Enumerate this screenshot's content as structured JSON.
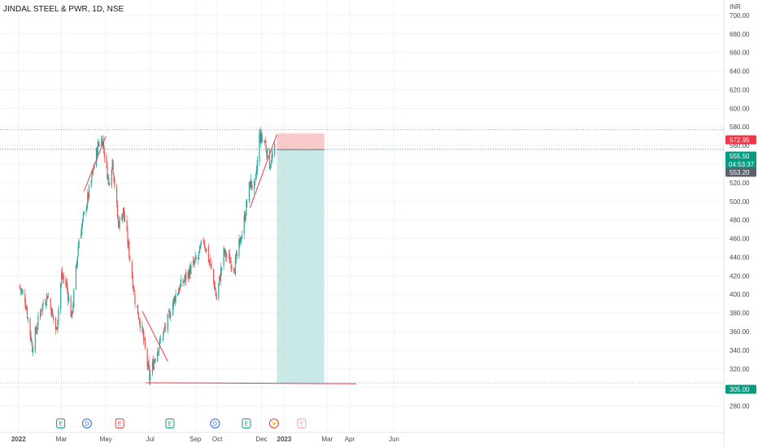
{
  "header": {
    "title": "JINDAL STEEL & PWR, 1D, NSE"
  },
  "currency": "INR",
  "colors": {
    "up": "#26a69a",
    "down": "#ef5350",
    "trend": "#f23645",
    "grid": "#f0f3fa",
    "stop": "#f7b2b2",
    "target": "#b2dfdb",
    "entry": "#089981",
    "dark_tag": "#5d606b"
  },
  "chart_data": {
    "type": "candlestick",
    "title": "JINDAL STEEL & PWR, 1D, NSE",
    "ylim": [
      270,
      712
    ],
    "y_ticks": [
      "700.00",
      "680.00",
      "660.00",
      "640.00",
      "620.00",
      "600.00",
      "580.00",
      "560.00",
      "540.00",
      "520.00",
      "500.00",
      "480.00",
      "460.00",
      "440.00",
      "420.00",
      "400.00",
      "380.00",
      "360.00",
      "340.00",
      "320.00",
      "300.00",
      "280.00"
    ],
    "x_ticks": [
      "2022",
      "Mar",
      "May",
      "Jul",
      "Sep",
      "Oct",
      "Dec",
      "2023",
      "Mar",
      "Apr",
      "Jun"
    ],
    "x_tick_bold": [
      "2022",
      "2023"
    ],
    "price_key_points": [
      {
        "date": "2022-01-01",
        "price": 410
      },
      {
        "date": "2022-01-10",
        "price": 395
      },
      {
        "date": "2022-01-20",
        "price": 343
      },
      {
        "date": "2022-02-01",
        "price": 385
      },
      {
        "date": "2022-02-10",
        "price": 400
      },
      {
        "date": "2022-02-22",
        "price": 360
      },
      {
        "date": "2022-03-01",
        "price": 420
      },
      {
        "date": "2022-03-08",
        "price": 410
      },
      {
        "date": "2022-03-15",
        "price": 375
      },
      {
        "date": "2022-03-25",
        "price": 460
      },
      {
        "date": "2022-04-08",
        "price": 510
      },
      {
        "date": "2022-04-20",
        "price": 560
      },
      {
        "date": "2022-04-26",
        "price": 568
      },
      {
        "date": "2022-05-05",
        "price": 520
      },
      {
        "date": "2022-05-10",
        "price": 545
      },
      {
        "date": "2022-05-18",
        "price": 475
      },
      {
        "date": "2022-05-25",
        "price": 490
      },
      {
        "date": "2022-06-02",
        "price": 445
      },
      {
        "date": "2022-06-10",
        "price": 395
      },
      {
        "date": "2022-06-20",
        "price": 360
      },
      {
        "date": "2022-06-30",
        "price": 310
      },
      {
        "date": "2022-07-08",
        "price": 335
      },
      {
        "date": "2022-07-20",
        "price": 360
      },
      {
        "date": "2022-08-05",
        "price": 400
      },
      {
        "date": "2022-08-20",
        "price": 420
      },
      {
        "date": "2022-09-05",
        "price": 440
      },
      {
        "date": "2022-09-12",
        "price": 460
      },
      {
        "date": "2022-09-25",
        "price": 420
      },
      {
        "date": "2022-09-30",
        "price": 395
      },
      {
        "date": "2022-10-10",
        "price": 445
      },
      {
        "date": "2022-10-25",
        "price": 430
      },
      {
        "date": "2022-11-05",
        "price": 470
      },
      {
        "date": "2022-11-15",
        "price": 520
      },
      {
        "date": "2022-11-22",
        "price": 515
      },
      {
        "date": "2022-11-28",
        "price": 570
      },
      {
        "date": "2022-12-05",
        "price": 565
      },
      {
        "date": "2022-12-12",
        "price": 540
      },
      {
        "date": "2022-12-19",
        "price": 555.5
      }
    ],
    "annotations": {
      "horizontal_lines": [
        {
          "price": 577,
          "style": "dotted"
        },
        {
          "price": 556,
          "style": "dotted"
        },
        {
          "price": 305,
          "style": "dotted"
        }
      ],
      "trendlines": [
        {
          "from": {
            "date": "2022-04-01",
            "price": 511
          },
          "to": {
            "date": "2022-05-01",
            "price": 570
          }
        },
        {
          "from": {
            "date": "2022-06-20",
            "price": 382
          },
          "to": {
            "date": "2022-07-25",
            "price": 328
          }
        },
        {
          "from": {
            "date": "2022-11-15",
            "price": 493
          },
          "to": {
            "date": "2022-12-22",
            "price": 572
          }
        },
        {
          "from": {
            "date": "2022-06-25",
            "price": 305
          },
          "to": {
            "date": "2023-04-10",
            "price": 304
          }
        }
      ],
      "position": {
        "type": "short",
        "start": "2022-12-22",
        "end": "2023-02-25",
        "entry": 555.5,
        "stop": 572.95,
        "target": 305
      }
    },
    "price_tags": [
      {
        "label": "572.95",
        "color": "#f23645"
      },
      {
        "label": "555.50",
        "sublabel": "04:53:37",
        "color": "#089981"
      },
      {
        "label": "553.20",
        "color": "#5d606b"
      },
      {
        "label": "305.00",
        "color": "#089981"
      }
    ],
    "event_markers": [
      {
        "label": "E",
        "color": "#089981",
        "shape": "square",
        "date": "2022-02-28"
      },
      {
        "label": "D",
        "color": "#2962ff",
        "shape": "circle",
        "date": "2022-04-05"
      },
      {
        "label": "E",
        "color": "#f23645",
        "shape": "square",
        "date": "2022-05-20"
      },
      {
        "label": "E",
        "color": "#089981",
        "shape": "square",
        "date": "2022-07-28"
      },
      {
        "label": "D",
        "color": "#2962ff",
        "shape": "circle",
        "date": "2022-09-28"
      },
      {
        "label": "E",
        "color": "#089981",
        "shape": "square",
        "date": "2022-11-10"
      },
      {
        "label": "⚡",
        "color": "#f23645",
        "shape": "circle",
        "date": "2022-12-18"
      },
      {
        "label": "E",
        "color": "#f7a0b4",
        "shape": "square",
        "date": "2023-01-25"
      }
    ]
  }
}
